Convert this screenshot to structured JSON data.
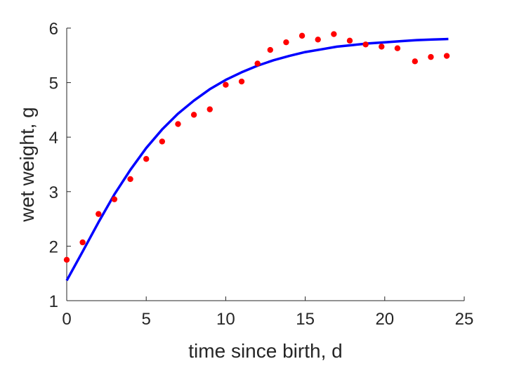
{
  "chart_data": {
    "type": "scatter",
    "title": "",
    "xlabel": "time since birth, d",
    "ylabel": "wet weight, g",
    "xlim": [
      0,
      25
    ],
    "ylim": [
      1,
      6
    ],
    "xticks": [
      "0",
      "5",
      "10",
      "15",
      "20",
      "25"
    ],
    "yticks": [
      "1",
      "2",
      "3",
      "4",
      "5",
      "6"
    ],
    "grid": false,
    "legend": "none",
    "series": [
      {
        "kind": "scatter",
        "color": "#ff0000",
        "x": [
          0,
          1,
          2,
          3,
          4,
          5,
          6,
          7,
          8,
          9,
          10,
          11,
          12,
          12.8,
          13.8,
          14.8,
          15.8,
          16.8,
          17.8,
          18.8,
          19.8,
          20.8,
          21.9,
          22.9,
          23.9
        ],
        "y": [
          1.75,
          2.07,
          2.59,
          2.86,
          3.23,
          3.6,
          3.92,
          4.24,
          4.41,
          4.51,
          4.96,
          5.02,
          5.35,
          5.6,
          5.74,
          5.86,
          5.79,
          5.89,
          5.77,
          5.7,
          5.66,
          5.63,
          5.39,
          5.47,
          5.49
        ]
      },
      {
        "kind": "line",
        "color": "#0000ff",
        "x": [
          0,
          1,
          2,
          3,
          4,
          5,
          6,
          7,
          8,
          9,
          10,
          11,
          12,
          13,
          14,
          15,
          16,
          17,
          18,
          19,
          20,
          21,
          22,
          23,
          24
        ],
        "y": [
          1.37,
          1.9,
          2.44,
          2.95,
          3.4,
          3.8,
          4.14,
          4.43,
          4.67,
          4.88,
          5.05,
          5.19,
          5.31,
          5.41,
          5.49,
          5.56,
          5.61,
          5.66,
          5.69,
          5.72,
          5.74,
          5.76,
          5.78,
          5.79,
          5.8
        ]
      }
    ]
  }
}
